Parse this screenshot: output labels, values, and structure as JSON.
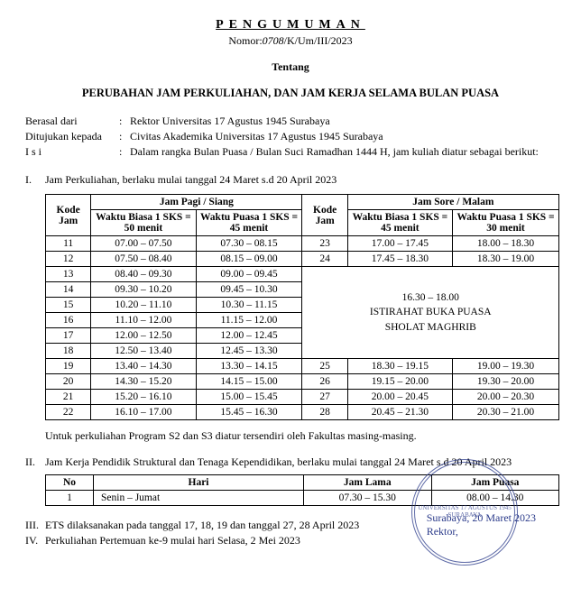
{
  "header": {
    "title": "PENGUMUMAN",
    "nomor_prefix": "Nomor:",
    "nomor_hand": "0708",
    "nomor_suffix": "/K/Um/III/2023",
    "tentang": "Tentang",
    "subject": "PERUBAHAN JAM PERKULIAHAN, DAN JAM KERJA SELAMA BULAN PUASA"
  },
  "meta": {
    "l1": "Berasal dari",
    "v1": "Rektor Universitas 17 Agustus 1945 Surabaya",
    "l2": "Ditujukan kepada",
    "v2": "Civitas Akademika Universitas 17 Agustus 1945 Surabaya",
    "l3": "I s i",
    "v3": "Dalam rangka Bulan Puasa / Bulan Suci Ramadhan 1444 H, jam kuliah diatur sebagai berikut:"
  },
  "sec1": {
    "num": "I.",
    "text": "Jam Perkuliahan, berlaku mulai tanggal 24 Maret s.d 20 April 2023",
    "headers": {
      "kode": "Kode Jam",
      "pagi": "Jam Pagi / Siang",
      "sore": "Jam Sore / Malam",
      "biasa50": "Waktu Biasa\n1 SKS = 50 menit",
      "puasa45": "Waktu Puasa\n1 SKS = 45 menit",
      "biasa45": "Waktu Biasa\n1 SKS = 45 menit",
      "puasa30": "Waktu Puasa\n1 SKS = 30 menit"
    },
    "break_text": "16.30 – 18.00\nISTIRAHAT BUKA PUASA\nSHOLAT MAGHRIB",
    "rows": [
      {
        "k1": "11",
        "b1": "07.00 – 07.50",
        "p1": "07.30 – 08.15",
        "k2": "23",
        "b2": "17.00 – 17.45",
        "p2": "18.00 – 18.30"
      },
      {
        "k1": "12",
        "b1": "07.50 – 08.40",
        "p1": "08.15 – 09.00",
        "k2": "24",
        "b2": "17.45 – 18.30",
        "p2": "18.30 – 19.00"
      },
      {
        "k1": "13",
        "b1": "08.40 – 09.30",
        "p1": "09.00 – 09.45"
      },
      {
        "k1": "14",
        "b1": "09.30 – 10.20",
        "p1": "09.45 – 10.30"
      },
      {
        "k1": "15",
        "b1": "10.20 – 11.10",
        "p1": "10.30 – 11.15"
      },
      {
        "k1": "16",
        "b1": "11.10 – 12.00",
        "p1": "11.15 – 12.00"
      },
      {
        "k1": "17",
        "b1": "12.00 – 12.50",
        "p1": "12.00 – 12.45"
      },
      {
        "k1": "18",
        "b1": "12.50 – 13.40",
        "p1": "12.45 – 13.30"
      },
      {
        "k1": "19",
        "b1": "13.40 – 14.30",
        "p1": "13.30 – 14.15",
        "k2": "25",
        "b2": "18.30 – 19.15",
        "p2": "19.00 – 19.30"
      },
      {
        "k1": "20",
        "b1": "14.30 – 15.20",
        "p1": "14.15 – 15.00",
        "k2": "26",
        "b2": "19.15 – 20.00",
        "p2": "19.30 – 20.00"
      },
      {
        "k1": "21",
        "b1": "15.20 – 16.10",
        "p1": "15.00 – 15.45",
        "k2": "27",
        "b2": "20.00 – 20.45",
        "p2": "20.00 – 20.30"
      },
      {
        "k1": "22",
        "b1": "16.10 – 17.00",
        "p1": "15.45 – 16.30",
        "k2": "28",
        "b2": "20.45 – 21.30",
        "p2": "20.30 – 21.00"
      }
    ],
    "note": "Untuk perkuliahan Program S2 dan S3 diatur tersendiri oleh Fakultas masing-masing."
  },
  "sec2": {
    "num": "II.",
    "text": "Jam Kerja Pendidik Struktural dan Tenaga Kependidikan, berlaku mulai tanggal 24 Maret s.d 20 April 2023",
    "headers": {
      "no": "No",
      "hari": "Hari",
      "lama": "Jam Lama",
      "puasa": "Jam Puasa"
    },
    "row": {
      "no": "1",
      "hari": "Senin – Jumat",
      "lama": "07.30 – 15.30",
      "puasa": "08.00 – 14.30"
    }
  },
  "sec3": {
    "num": "III.",
    "text": "ETS dilaksanakan pada tanggal 17, 18, 19 dan tanggal 27, 28 April 2023"
  },
  "sec4": {
    "num": "IV.",
    "text": "Perkuliahan Pertemuan ke-9 mulai hari Selasa, 2 Mei 2023"
  },
  "sign": {
    "place_date": "Surabaya, 20 Maret 2023",
    "role": "Rektor,",
    "stamp": "UNIVERSITAS 17 AGUSTUS 1945 SURABAYA"
  }
}
